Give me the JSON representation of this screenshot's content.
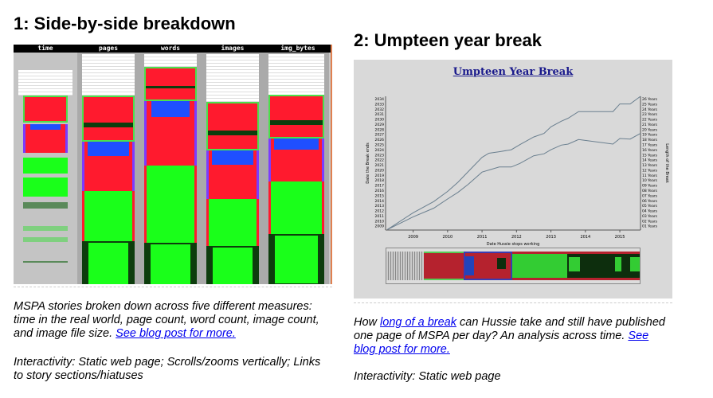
{
  "left": {
    "title": "1: Side-by-side breakdown",
    "columns": [
      "time",
      "pages",
      "words",
      "images",
      "img_bytes"
    ],
    "caption": "MSPA stories broken down across five different measures: time in the real world, page count, word count, image count, and image file size.",
    "link": "See blog post for more.",
    "interactivity": "Interactivity: Static web page; Scrolls/zooms vertically; Links to story sections/hiatuses"
  },
  "right": {
    "title": "2: Umpteen year break",
    "caption_pre": "How",
    "caption_link": "long of a break",
    "caption_post": "can Hussie take and still have published one page of MSPA per day? An analysis across time.",
    "link": "See blog post for more.",
    "interactivity": "Interactivity: Static web page"
  },
  "chart_data": {
    "type": "line",
    "title": "Umpteen Year Break",
    "xlabel": "Date Hussie stops working",
    "ylabel": "Date the Break ends",
    "y2label": "Length of the Break",
    "xticks": [
      "2009",
      "2010",
      "2011",
      "2012",
      "2013",
      "2014",
      "2015"
    ],
    "yticks": [
      "2009",
      "2010",
      "2011",
      "2012",
      "2013",
      "2014",
      "2015",
      "2016",
      "2017",
      "2018",
      "2019",
      "2020",
      "2021",
      "2022",
      "2023",
      "2024",
      "2025",
      "2026",
      "2027",
      "2028",
      "2029",
      "2030",
      "2031",
      "2032",
      "2033",
      "2034"
    ],
    "y2ticks": [
      "01 Years",
      "02 Years",
      "03 Years",
      "04 Years",
      "05 Years",
      "06 Years",
      "07 Years",
      "08 Years",
      "09 Years",
      "10 Years",
      "11 Years",
      "12 Years",
      "13 Years",
      "14 Years",
      "15 Years",
      "16 Years",
      "17 Years",
      "18 Years",
      "19 Years",
      "20 Years",
      "21 Years",
      "22 Years",
      "23 Years",
      "24 Years",
      "25 Years",
      "26 Years"
    ],
    "xlim": [
      2008.2,
      2015.6
    ],
    "ylim": [
      2008.2,
      2034.5
    ],
    "series": [
      {
        "name": "Date the Break ends",
        "x": [
          2008.25,
          2009,
          2009.6,
          2010,
          2010.3,
          2010.6,
          2011,
          2011.2,
          2011.5,
          2011.85,
          2012.1,
          2012.5,
          2012.8,
          2013,
          2013.3,
          2013.5,
          2013.8,
          2014.8,
          2015,
          2015.3,
          2015.6
        ],
        "y": [
          2008.3,
          2011.6,
          2013.8,
          2015.8,
          2017.6,
          2019.7,
          2022.5,
          2023.3,
          2023.6,
          2024,
          2025,
          2026.5,
          2027.2,
          2028.5,
          2029.6,
          2030.2,
          2031.5,
          2031.5,
          2033,
          2033,
          2034.5
        ]
      },
      {
        "name": "Length of the Break (years, +2008)",
        "x": [
          2008.25,
          2009,
          2009.6,
          2010,
          2010.3,
          2010.6,
          2011,
          2011.2,
          2011.5,
          2011.85,
          2012.1,
          2012.5,
          2012.8,
          2013,
          2013.3,
          2013.5,
          2013.8,
          2014.8,
          2015,
          2015.3,
          2015.6
        ],
        "y": [
          2008.3,
          2010.8,
          2012.5,
          2014.3,
          2015.6,
          2017.2,
          2019.6,
          2020,
          2020.6,
          2020.6,
          2021.3,
          2022.8,
          2023.2,
          2024,
          2024.9,
          2025.1,
          2026,
          2025.1,
          2026.2,
          2026.1,
          2027.2
        ]
      }
    ]
  },
  "colors": {
    "line": "#6a7f8f",
    "title": "#1a1a8c",
    "link": "#0000ee"
  }
}
